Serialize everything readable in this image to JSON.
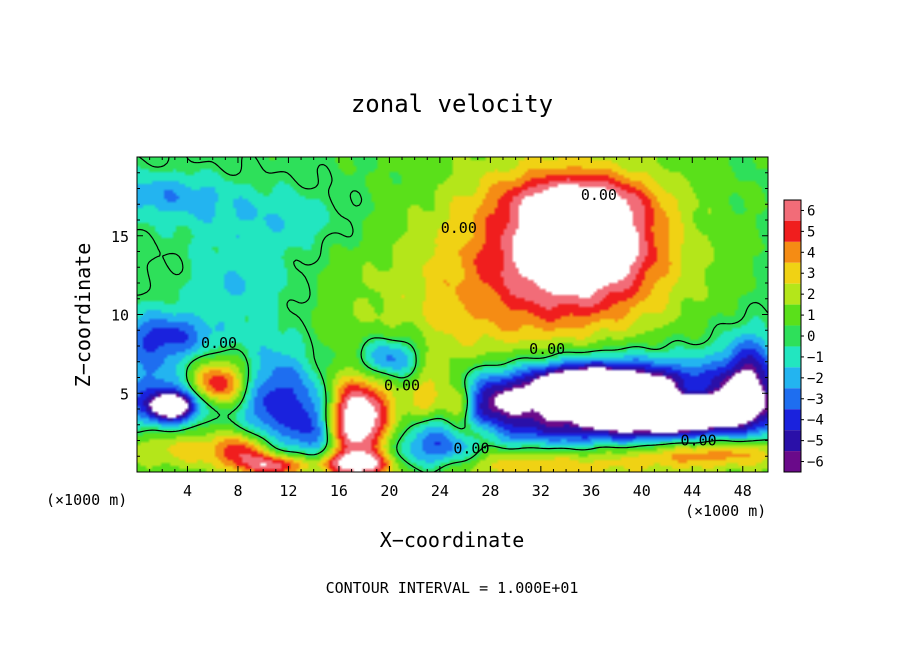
{
  "chart_data": {
    "type": "heatmap",
    "title": "zonal velocity",
    "xlabel": "X−coordinate",
    "ylabel": "Z−coordinate",
    "x_unit_left": "(×1000 m)",
    "x_unit_right": "(×1000 m)",
    "xlim": [
      0,
      50
    ],
    "ylim": [
      0,
      20
    ],
    "x_ticks": [
      4,
      8,
      12,
      16,
      20,
      24,
      28,
      32,
      36,
      40,
      44,
      48
    ],
    "y_ticks": [
      5,
      10,
      15
    ],
    "x_tick_labels": [
      "4",
      "8",
      "12",
      "16",
      "20",
      "24",
      "28",
      "32",
      "36",
      "40",
      "44",
      "48"
    ],
    "y_tick_labels": [
      "5",
      "10",
      "15"
    ],
    "colorbar": {
      "min": -6,
      "max": 6,
      "tick_values": [
        6,
        5,
        4,
        3,
        2,
        1,
        0,
        -1,
        -2,
        -3,
        -4,
        -5,
        -6
      ],
      "tick_labels": [
        "6",
        "5",
        "4",
        "3",
        "2",
        "1",
        "0",
        "−1",
        "−2",
        "−3",
        "−4",
        "−5",
        "−6"
      ]
    },
    "contour_labels": [
      {
        "text": "0.00",
        "x": 36.6,
        "y": 17.6
      },
      {
        "text": "0.00",
        "x": 25.5,
        "y": 15.5
      },
      {
        "text": "0.00",
        "x": 6.5,
        "y": 8.2
      },
      {
        "text": "0.00",
        "x": 32.5,
        "y": 7.8
      },
      {
        "text": "0.00",
        "x": 21.0,
        "y": 5.5
      },
      {
        "text": "0.00",
        "x": 26.5,
        "y": 1.5
      },
      {
        "text": "0.00",
        "x": 44.5,
        "y": 2.0
      }
    ],
    "features": [
      {
        "value": 5.2,
        "x": 35.5,
        "y": 14.5,
        "sx": 3.5,
        "sy": 2.0
      },
      {
        "value": 3.5,
        "x": 34.5,
        "y": 14.0,
        "sx": 5.5,
        "sy": 4.0
      },
      {
        "value": 2.4,
        "x": 32.5,
        "y": 13.0,
        "sx": 7.5,
        "sy": 5.5
      },
      {
        "value": 3.0,
        "x": 35.0,
        "y": 17.3,
        "sx": 4.0,
        "sy": 1.0
      },
      {
        "value": -2.3,
        "x": 2.0,
        "y": 17.6,
        "sx": 3.5,
        "sy": 1.0
      },
      {
        "value": -1.8,
        "x": 8.5,
        "y": 12.0,
        "sx": 3.0,
        "sy": 1.5
      },
      {
        "value": -1.7,
        "x": 10.0,
        "y": 16.0,
        "sx": 5.0,
        "sy": 1.5
      },
      {
        "value": 1.2,
        "x": 23.0,
        "y": 10.5,
        "sx": 6.0,
        "sy": 3.5
      },
      {
        "value": -2.5,
        "x": 2.5,
        "y": 8.7,
        "sx": 3.5,
        "sy": 1.0
      },
      {
        "value": -4.5,
        "x": 2.0,
        "y": 5.5,
        "sx": 2.5,
        "sy": 2.5
      },
      {
        "value": -7.0,
        "x": 2.8,
        "y": 4.2,
        "sx": 1.3,
        "sy": 0.6
      },
      {
        "value": 4.5,
        "x": 6.5,
        "y": 5.5,
        "sx": 1.5,
        "sy": 0.9
      },
      {
        "value": 2.5,
        "x": 4.5,
        "y": 6.3,
        "sx": 3.0,
        "sy": 1.2
      },
      {
        "value": -4.5,
        "x": 11.0,
        "y": 4.5,
        "sx": 2.0,
        "sy": 2.5
      },
      {
        "value": -4.2,
        "x": 14.2,
        "y": 2.8,
        "sx": 1.3,
        "sy": 2.0
      },
      {
        "value": 5.5,
        "x": 17.3,
        "y": 3.2,
        "sx": 1.6,
        "sy": 1.6
      },
      {
        "value": 3.5,
        "x": 18.5,
        "y": 3.6,
        "sx": 3.0,
        "sy": 2.2
      },
      {
        "value": -3.8,
        "x": 19.5,
        "y": 7.2,
        "sx": 1.6,
        "sy": 0.9
      },
      {
        "value": -2.2,
        "x": 21.5,
        "y": 6.2,
        "sx": 1.5,
        "sy": 1.8
      },
      {
        "value": 3.0,
        "x": 23.0,
        "y": 4.8,
        "sx": 1.3,
        "sy": 1.6
      },
      {
        "value": 4.5,
        "x": 25.6,
        "y": 4.2,
        "sx": 0.9,
        "sy": 0.8
      },
      {
        "value": 4.5,
        "x": 26.5,
        "y": 2.6,
        "sx": 1.8,
        "sy": 0.7
      },
      {
        "value": -4.0,
        "x": 28.0,
        "y": 4.5,
        "sx": 2.0,
        "sy": 1.2
      },
      {
        "value": -4.2,
        "x": 24.0,
        "y": 2.2,
        "sx": 2.5,
        "sy": 1.0
      },
      {
        "value": -4.0,
        "x": 22.5,
        "y": 0.8,
        "sx": 3.0,
        "sy": 0.8
      },
      {
        "value": -7.5,
        "x": 35.5,
        "y": 5.5,
        "sx": 3.5,
        "sy": 0.9
      },
      {
        "value": -4.5,
        "x": 35.5,
        "y": 5.0,
        "sx": 5.5,
        "sy": 2.0
      },
      {
        "value": -7.5,
        "x": 42.5,
        "y": 4.0,
        "sx": 3.8,
        "sy": 1.0
      },
      {
        "value": -4.5,
        "x": 44.0,
        "y": 4.2,
        "sx": 6.0,
        "sy": 2.0
      },
      {
        "value": -4.5,
        "x": 48.5,
        "y": 6.0,
        "sx": 1.5,
        "sy": 2.0
      },
      {
        "value": 4.5,
        "x": 43.8,
        "y": 5.1,
        "sx": 1.5,
        "sy": 0.5
      },
      {
        "value": -3.0,
        "x": 31.0,
        "y": 2.8,
        "sx": 6.0,
        "sy": 1.2
      },
      {
        "value": 3.5,
        "x": 30.0,
        "y": 0.6,
        "sx": 12.0,
        "sy": 0.9
      },
      {
        "value": 4.0,
        "x": 46.0,
        "y": 1.3,
        "sx": 5.0,
        "sy": 0.7
      },
      {
        "value": 3.5,
        "x": 3.0,
        "y": 1.6,
        "sx": 3.5,
        "sy": 1.0
      },
      {
        "value": 5.5,
        "x": 11.0,
        "y": 0.4,
        "sx": 2.0,
        "sy": 0.5
      },
      {
        "value": 5.5,
        "x": 17.5,
        "y": 0.5,
        "sx": 1.8,
        "sy": 0.5
      },
      {
        "value": 4.0,
        "x": 8.5,
        "y": 1.4,
        "sx": 1.5,
        "sy": 0.8
      }
    ],
    "grid": false,
    "legend": "colorbar-right",
    "footer": "CONTOUR INTERVAL = 1.000E+01"
  }
}
